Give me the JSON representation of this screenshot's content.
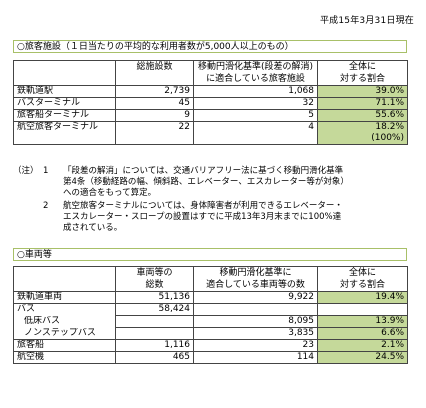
{
  "date_label": "平成15年3月31日現在",
  "colors": {
    "green_cell": "#c5d99a",
    "border": "#444444",
    "header_border": "#a8c068"
  },
  "section1": {
    "title": "○旅客施設（１日当たりの平均的な利用者数が5,000人以上のもの）",
    "headers": {
      "total": "総施設数",
      "compliant_line1": "移動円滑化基準(段差の解消)",
      "compliant_line2": "に適合している旅客施設",
      "ratio_line1": "全体に",
      "ratio_line2": "対する割合"
    },
    "rows": [
      {
        "name": "鉄軌道駅",
        "total": "2,739",
        "compliant": "1,068",
        "ratio": "39.0%"
      },
      {
        "name": "バスターミナル",
        "total": "45",
        "compliant": "32",
        "ratio": "71.1%"
      },
      {
        "name": "旅客船ターミナル",
        "total": "9",
        "compliant": "5",
        "ratio": "55.6%"
      },
      {
        "name": "航空旅客ターミナル",
        "total": "22",
        "compliant": "4",
        "ratio": "18.2%"
      }
    ],
    "extra_ratio": "(100%)"
  },
  "notes": [
    {
      "label": "（注）",
      "index": "1",
      "text": "「段差の解消」については、交通バリアフリー法に基づく移動円滑化基準\n第4条（移動経路の幅、傾斜路、エレベーター、エスカレーター等が対象）\nへの適合をもって算定。"
    },
    {
      "label": "",
      "index": "2",
      "text": "航空旅客ターミナルについては、身体障害者が利用できるエレベーター・\nエスカレーター・スロープの設置はすでに平成13年3月末までに100%達\n成されている。"
    }
  ],
  "section2": {
    "title": "○車両等",
    "headers": {
      "total_line1": "車両等の",
      "total_line2": "総数",
      "compliant_line1": "移動円滑化基準に",
      "compliant_line2": "適合している車両等の数",
      "ratio_line1": "全体に",
      "ratio_line2": "対する割合"
    },
    "rows": [
      {
        "name": "鉄軌道車両",
        "total": "51,136",
        "compliant": "9,922",
        "ratio": "19.4%"
      },
      {
        "name": "バス",
        "total": "58,424",
        "compliant": "",
        "ratio": ""
      },
      {
        "name": "低床バス",
        "total": "",
        "compliant": "8,095",
        "ratio": "13.9%"
      },
      {
        "name": "ノンステップバス",
        "total": "",
        "compliant": "3,835",
        "ratio": "6.6%"
      },
      {
        "name": "旅客船",
        "total": "1,116",
        "compliant": "23",
        "ratio": "2.1%"
      },
      {
        "name": "航空機",
        "total": "465",
        "compliant": "114",
        "ratio": "24.5%"
      }
    ]
  }
}
